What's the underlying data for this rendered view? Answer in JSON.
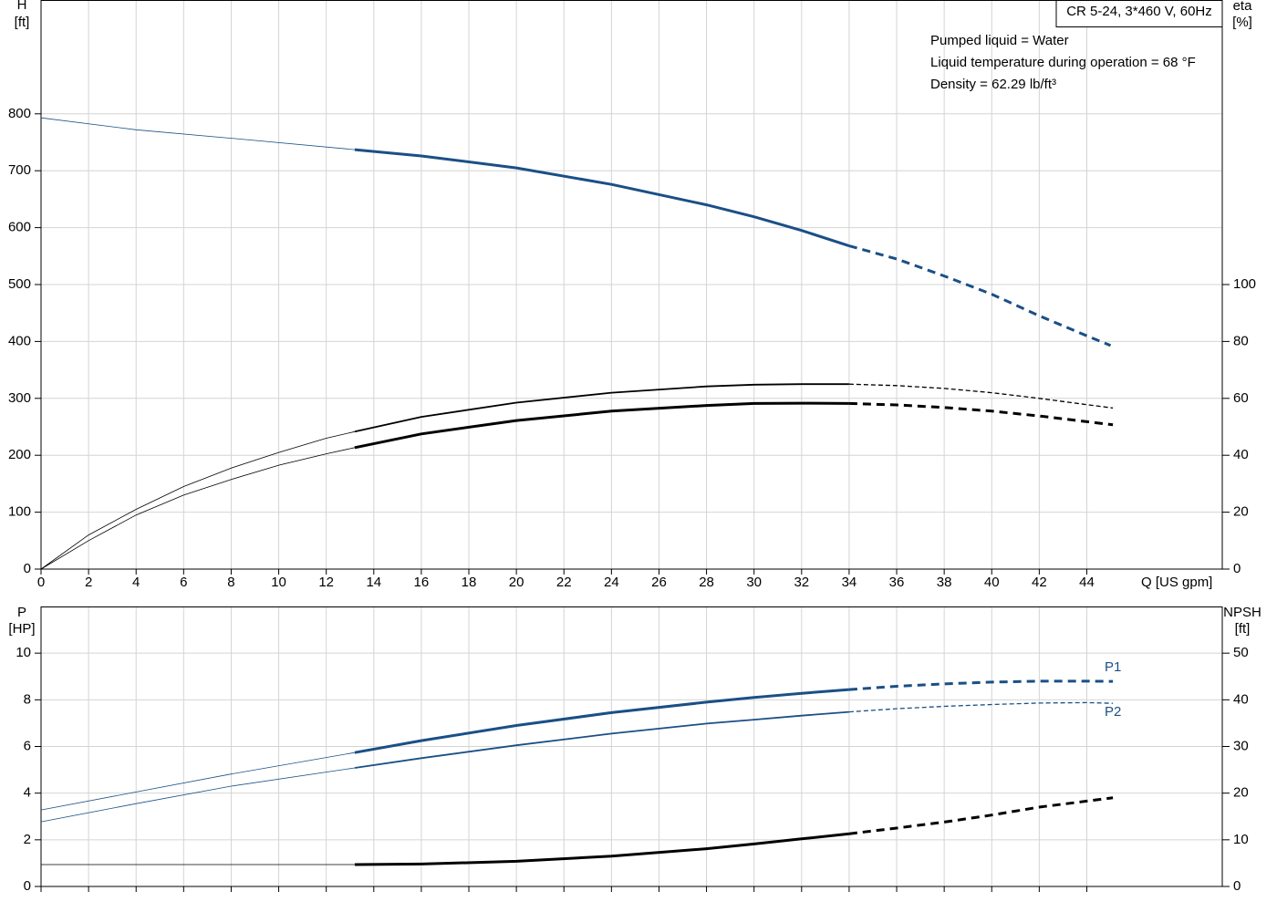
{
  "chart_data": [
    {
      "type": "line",
      "title": "CR 5-24, 3*460 V, 60Hz",
      "annotations": [
        "Pumped liquid = Water",
        "Liquid temperature during operation = 68 °F",
        "Density = 62.29 lb/ft³"
      ],
      "ylabel": "H",
      "yunit": "[ft]",
      "y2label": "eta",
      "y2unit": "[%]",
      "xlabel": "Q [US gpm]",
      "show_xtick_labels": true,
      "xlim": [
        0,
        49.7
      ],
      "xticks": [
        0,
        2,
        4,
        6,
        8,
        10,
        12,
        14,
        16,
        18,
        20,
        22,
        24,
        26,
        28,
        30,
        32,
        34,
        36,
        38,
        40,
        42,
        44
      ],
      "ylim": [
        0,
        1000
      ],
      "yticks": [
        0,
        100,
        200,
        300,
        400,
        500,
        600,
        700,
        800
      ],
      "y2lim": [
        0,
        200
      ],
      "y2ticks": [
        0,
        20,
        40,
        60,
        80,
        100
      ],
      "grid": true,
      "series": [
        {
          "color": "#1a4f86",
          "width": 0.8,
          "style": "solid",
          "x": [
            0,
            4,
            8,
            13.2
          ],
          "values": [
            793,
            772,
            757,
            737
          ]
        },
        {
          "color": "#1a4f86",
          "width": 3,
          "style": "solid",
          "x": [
            13.2,
            16,
            20,
            24,
            28,
            30,
            32,
            34
          ],
          "values": [
            737,
            726,
            705,
            676,
            640,
            619,
            595,
            568
          ]
        },
        {
          "color": "#1a4f86",
          "width": 3,
          "style": "dashed",
          "x": [
            34,
            36,
            38,
            40,
            42,
            44,
            45
          ],
          "values": [
            568,
            545,
            515,
            483,
            445,
            410,
            393
          ]
        },
        {
          "color": "#000000",
          "width": 0.8,
          "style": "solid",
          "axis": "y2",
          "x": [
            0,
            2,
            4,
            6,
            8,
            10,
            12,
            13.2
          ],
          "values": [
            0,
            12,
            21,
            29,
            35.5,
            41,
            46,
            48.3
          ]
        },
        {
          "color": "#000000",
          "width": 1.8,
          "style": "solid",
          "axis": "y2",
          "x": [
            13.2,
            16,
            20,
            24,
            28,
            30,
            32,
            34
          ],
          "values": [
            48.3,
            53.5,
            58.5,
            62,
            64.2,
            64.8,
            65,
            65
          ]
        },
        {
          "color": "#000000",
          "width": 1.3,
          "style": "dashed",
          "axis": "y2",
          "x": [
            34,
            36,
            38,
            40,
            42,
            44,
            45.1
          ],
          "values": [
            65,
            64.5,
            63.5,
            62,
            60,
            57.8,
            56.6
          ]
        },
        {
          "color": "#000000",
          "width": 0.8,
          "style": "solid",
          "axis": "y2",
          "x": [
            0,
            2,
            4,
            6,
            8,
            10,
            12,
            13.2
          ],
          "values": [
            0,
            10,
            19,
            26,
            31.5,
            36.5,
            40.5,
            42.7
          ]
        },
        {
          "color": "#000000",
          "width": 3,
          "style": "solid",
          "axis": "y2",
          "x": [
            13.2,
            16,
            20,
            24,
            28,
            30,
            32,
            34
          ],
          "values": [
            42.7,
            47.5,
            52.2,
            55.5,
            57.5,
            58.2,
            58.3,
            58.2
          ]
        },
        {
          "color": "#000000",
          "width": 3,
          "style": "dashed",
          "axis": "y2",
          "x": [
            34,
            36,
            38,
            40,
            42,
            45.1
          ],
          "values": [
            58.2,
            57.7,
            56.8,
            55.5,
            53.8,
            50.7
          ]
        }
      ]
    },
    {
      "type": "line",
      "ylabel": "P",
      "yunit": "[HP]",
      "y2label": "NPSH",
      "y2unit": "[ft]",
      "show_xtick_labels": false,
      "xlim": [
        0,
        49.7
      ],
      "xticks": [
        0,
        2,
        4,
        6,
        8,
        10,
        12,
        14,
        16,
        18,
        20,
        22,
        24,
        26,
        28,
        30,
        32,
        34,
        36,
        38,
        40,
        42,
        44
      ],
      "ylim": [
        0,
        12
      ],
      "yticks": [
        0,
        2,
        4,
        6,
        8,
        10
      ],
      "y2lim": [
        0,
        60
      ],
      "y2ticks": [
        0,
        10,
        20,
        30,
        40,
        50
      ],
      "grid": true,
      "series": [
        {
          "color": "#1a4f86",
          "width": 0.8,
          "style": "solid",
          "x": [
            0,
            4,
            8,
            13.2
          ],
          "values": [
            3.28,
            4.05,
            4.82,
            5.74
          ]
        },
        {
          "color": "#1a4f86",
          "width": 3,
          "style": "solid",
          "x": [
            13.2,
            16,
            20,
            24,
            28,
            30,
            32,
            34
          ],
          "values": [
            5.74,
            6.25,
            6.9,
            7.45,
            7.9,
            8.1,
            8.28,
            8.44
          ]
        },
        {
          "name": "P1",
          "color": "#1a4f86",
          "width": 3,
          "style": "dashed",
          "x": [
            34,
            36,
            38,
            40,
            42,
            44,
            45.1
          ],
          "values": [
            8.44,
            8.58,
            8.68,
            8.76,
            8.8,
            8.8,
            8.79
          ]
        },
        {
          "color": "#1a4f86",
          "width": 0.8,
          "style": "solid",
          "x": [
            0,
            4,
            8,
            13.2
          ],
          "values": [
            2.77,
            3.55,
            4.3,
            5.08
          ]
        },
        {
          "color": "#1a4f86",
          "width": 1.8,
          "style": "solid",
          "x": [
            13.2,
            16,
            20,
            24,
            28,
            30,
            32,
            34
          ],
          "values": [
            5.08,
            5.5,
            6.05,
            6.55,
            6.98,
            7.15,
            7.32,
            7.48
          ]
        },
        {
          "name": "P2",
          "color": "#1a4f86",
          "width": 1.3,
          "style": "dashed",
          "x": [
            34,
            36,
            38,
            40,
            42,
            44,
            45.1
          ],
          "values": [
            7.48,
            7.62,
            7.72,
            7.8,
            7.86,
            7.88,
            7.85
          ]
        },
        {
          "color": "#000000",
          "width": 0.8,
          "style": "solid",
          "axis": "y2",
          "x": [
            0,
            13.2
          ],
          "values": [
            4.69,
            4.69
          ]
        },
        {
          "color": "#000000",
          "width": 3,
          "style": "solid",
          "axis": "y2",
          "x": [
            13.2,
            16,
            20,
            24,
            28,
            30,
            32,
            34
          ],
          "values": [
            4.69,
            4.8,
            5.4,
            6.5,
            8.1,
            9.1,
            10.2,
            11.3
          ]
        },
        {
          "color": "#000000",
          "width": 3,
          "style": "dashed",
          "axis": "y2",
          "x": [
            34,
            36,
            38,
            40,
            42,
            45.1
          ],
          "values": [
            11.3,
            12.5,
            13.8,
            15.3,
            17,
            19
          ]
        }
      ]
    }
  ]
}
